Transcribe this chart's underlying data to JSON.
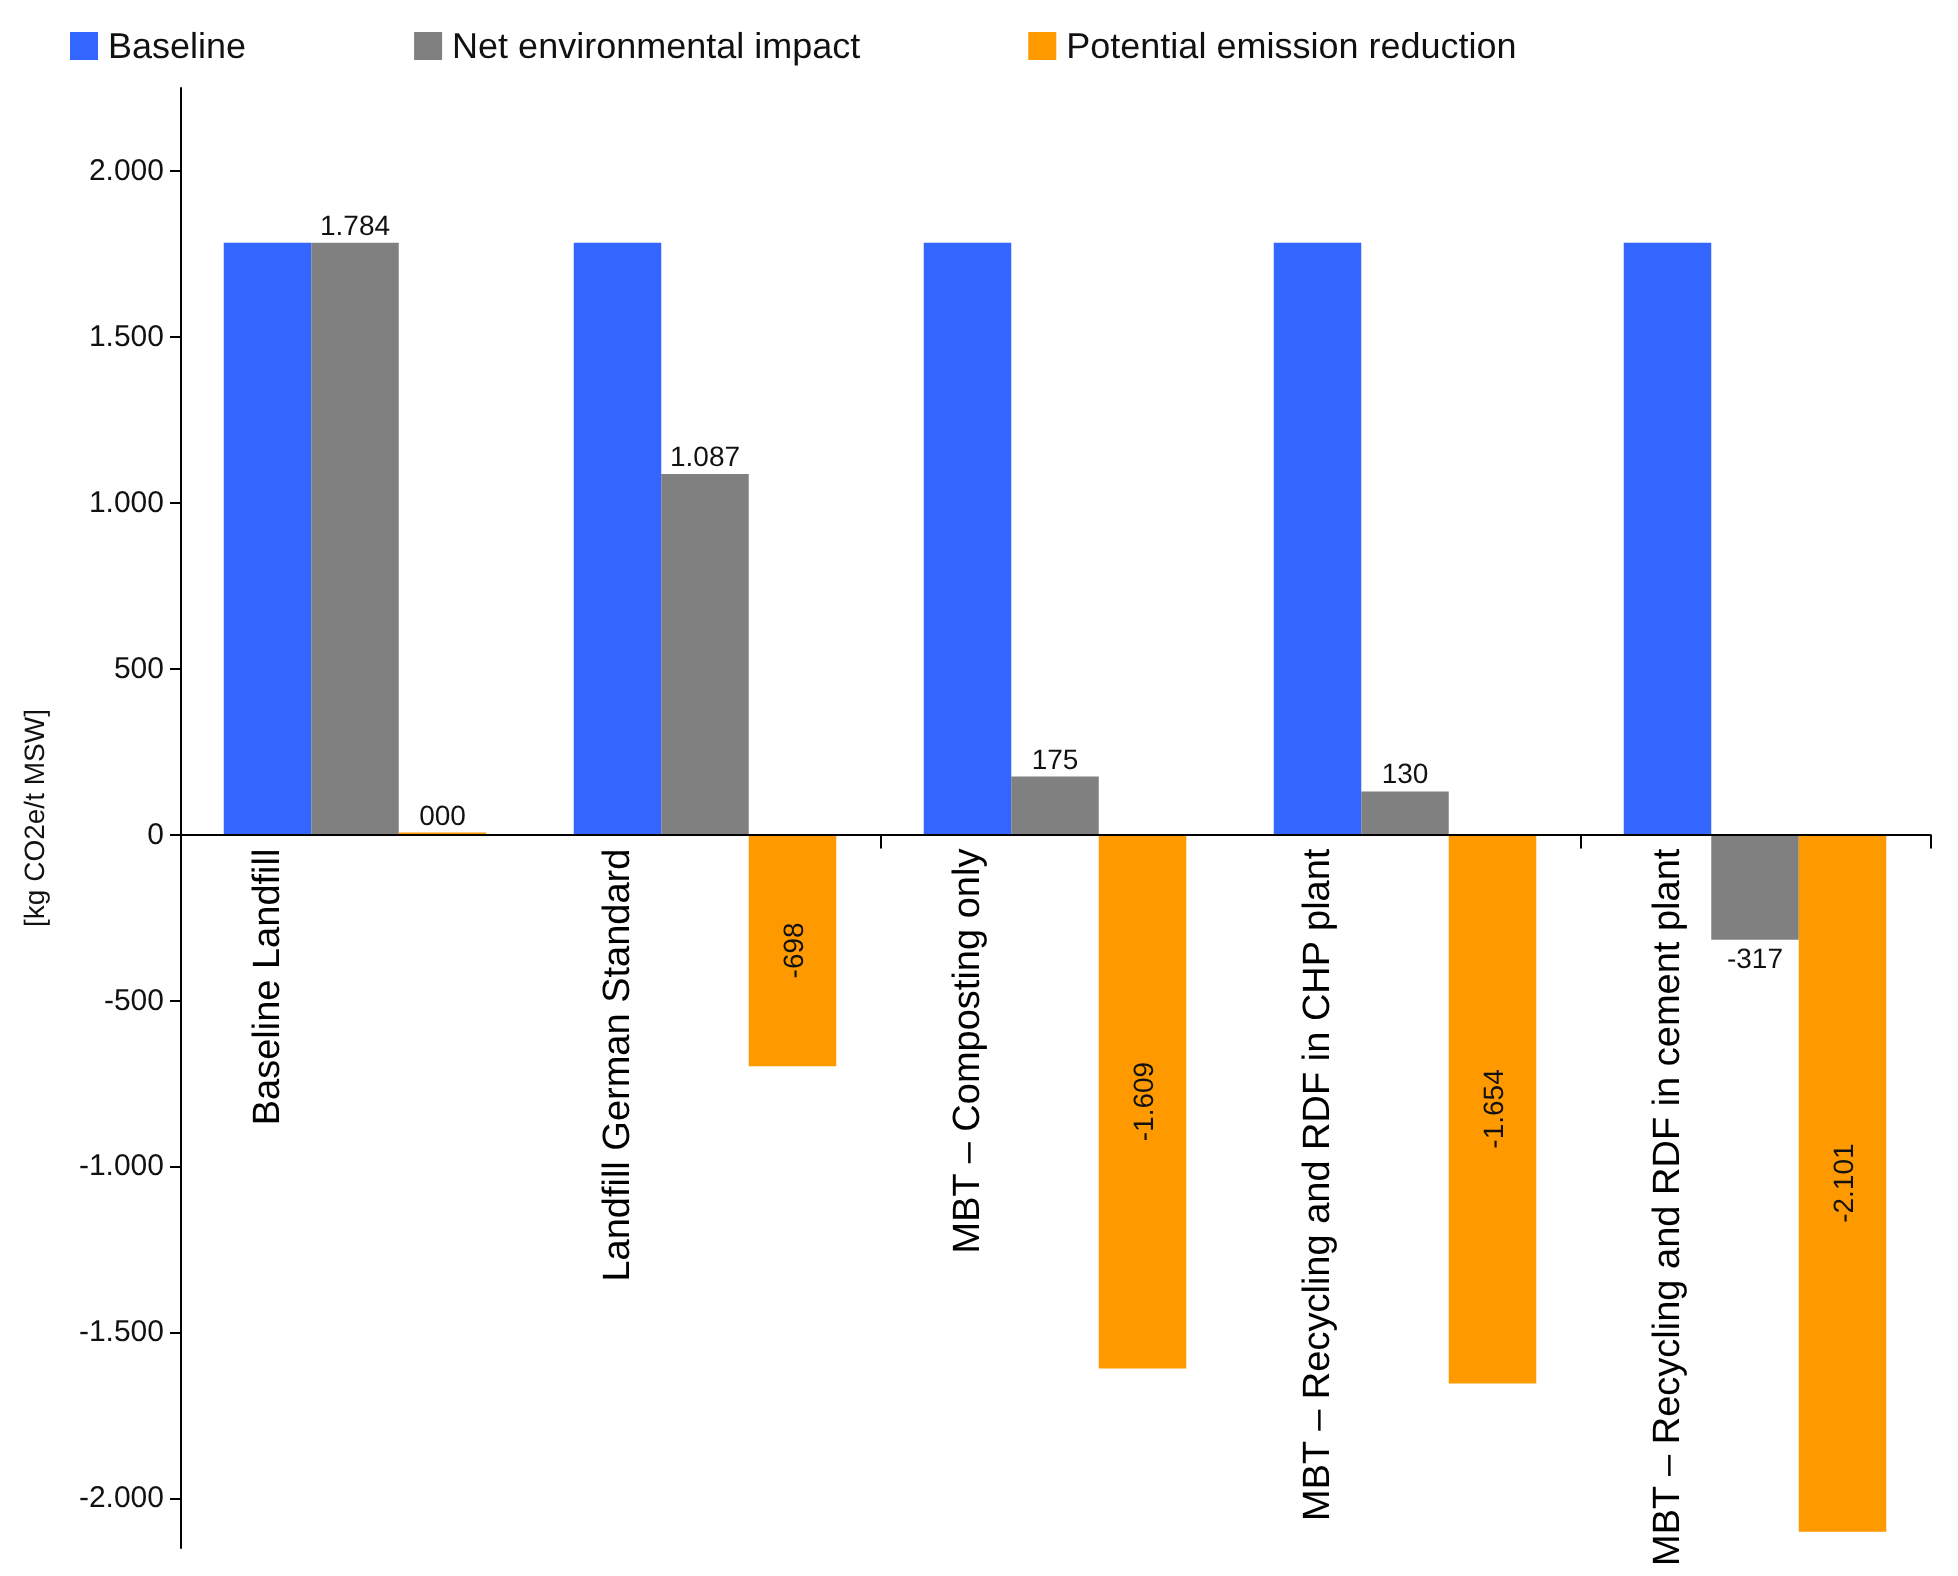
{
  "chart_data": {
    "type": "bar",
    "ylabel": "[kg CO2e/t MSW]",
    "categories": [
      "Baseline Landfill",
      "Landfill German Standard",
      "MBT – Composting only",
      "MBT – Recycling and RDF in CHP plant",
      "MBT – Recycling and RDF in cement plant"
    ],
    "series": [
      {
        "name": "Baseline",
        "color": "#3366ff",
        "values": [
          1784,
          1784,
          1784,
          1784,
          1784
        ]
      },
      {
        "name": "Net environmental impact",
        "color": "#808080",
        "values": [
          1784,
          1087,
          175,
          130,
          -317
        ],
        "value_labels": [
          "1.784",
          "1.087",
          "175",
          "130",
          "-317"
        ]
      },
      {
        "name": "Potential emission reduction",
        "color": "#ff9900",
        "values": [
          0,
          -698,
          -1609,
          -1654,
          -2101
        ],
        "value_labels": [
          "000",
          "-698",
          "-1.609",
          "-1.654",
          "-2.101"
        ]
      }
    ],
    "ylim": [
      -2150,
      2250
    ],
    "yticks": [
      {
        "value": -2000,
        "label": "-2.000"
      },
      {
        "value": -1500,
        "label": "-1.500"
      },
      {
        "value": -1000,
        "label": "-1.000"
      },
      -500,
      0,
      500,
      {
        "value": 1000,
        "label": "1.000"
      },
      {
        "value": 1500,
        "label": "1.500"
      },
      {
        "value": 2000,
        "label": "2.000"
      }
    ],
    "legend": "top left"
  }
}
